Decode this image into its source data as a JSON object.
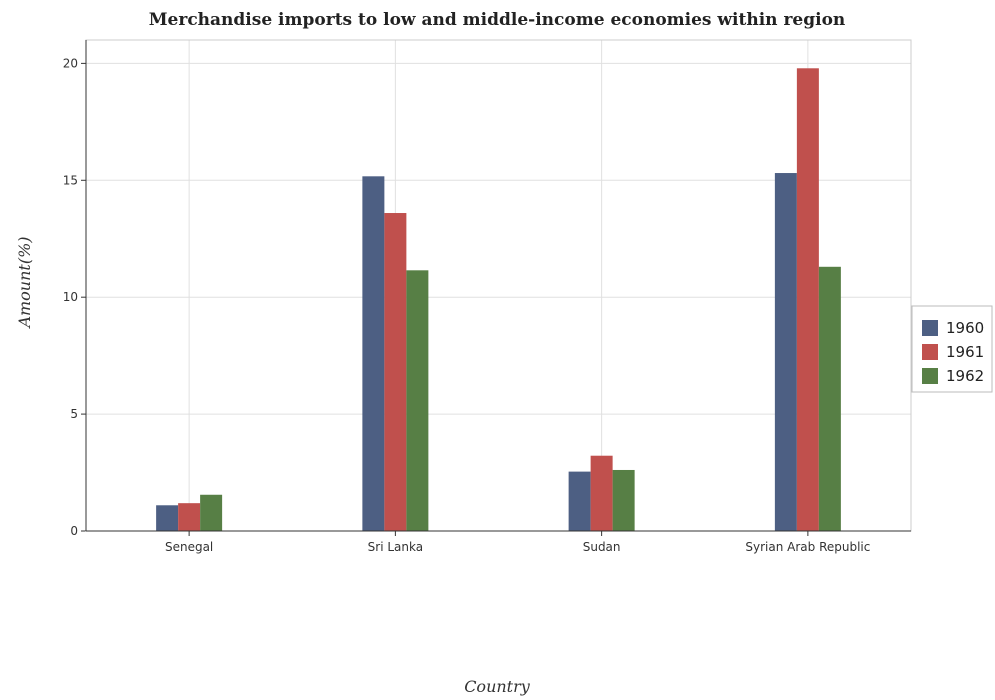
{
  "chart_data": {
    "type": "bar",
    "title": "Merchandise imports to low and middle-income economies within region",
    "xlabel": "Country",
    "ylabel": "Amount(%)",
    "categories": [
      "Senegal",
      "Sri Lanka",
      "Sudan",
      "Syrian Arab Republic"
    ],
    "series": [
      {
        "name": "1960",
        "color": "#4d5f83",
        "values": [
          1.1,
          15.17,
          2.54,
          15.31
        ]
      },
      {
        "name": "1961",
        "color": "#c0504d",
        "values": [
          1.19,
          13.6,
          3.22,
          19.79
        ]
      },
      {
        "name": "1962",
        "color": "#577f45",
        "values": [
          1.55,
          11.15,
          2.61,
          11.3
        ]
      }
    ],
    "y_ticks": [
      0,
      5,
      10,
      15,
      20
    ],
    "ylim": [
      0,
      21
    ],
    "grid": true,
    "legend_position": "right"
  }
}
